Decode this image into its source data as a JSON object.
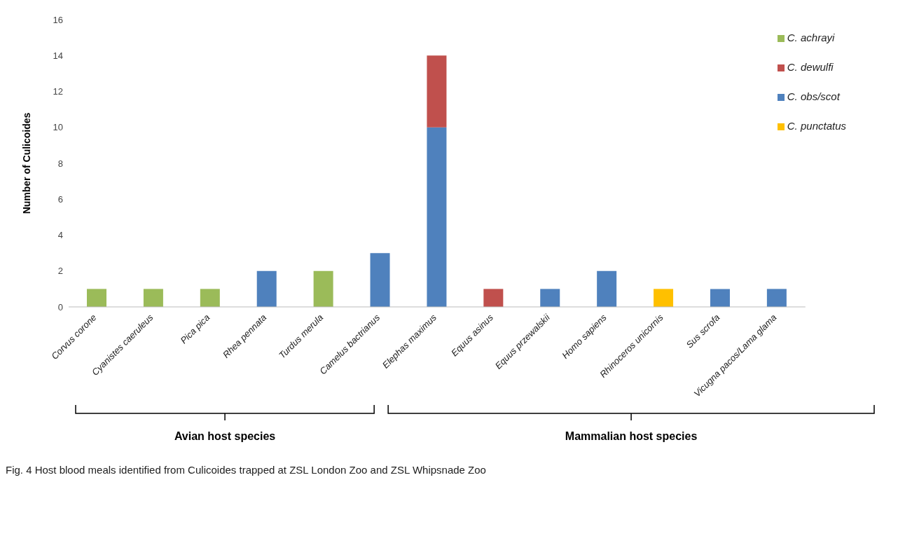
{
  "chart_data": {
    "type": "bar",
    "stacked": true,
    "ylabel": "Number of Culicoides",
    "categories": [
      "Corvus corone",
      "Cyanistes caeruleus",
      "Pica pica",
      "Rhea pennata",
      "Turdus merula",
      "Camelus bactrianus",
      "Elephas maximus",
      "Equus asinus",
      "Equus przewalskii",
      "Homo sapiens",
      "Rhinoceros unicornis",
      "Sus scrofa",
      "Vicugna pacos/Lama glama"
    ],
    "series": [
      {
        "name": "C. obs/scot",
        "color": "#4f81bd",
        "values": [
          null,
          null,
          null,
          2,
          null,
          3,
          10,
          null,
          1,
          2,
          null,
          1,
          1
        ]
      },
      {
        "name": "C. dewulfi",
        "color": "#c0504d",
        "values": [
          null,
          null,
          null,
          null,
          null,
          null,
          4,
          1,
          null,
          null,
          null,
          null,
          null
        ]
      },
      {
        "name": "C. achrayi",
        "color": "#9bbb59",
        "values": [
          1,
          1,
          1,
          null,
          2,
          null,
          null,
          null,
          null,
          null,
          null,
          null,
          null
        ]
      },
      {
        "name": "C. punctatus",
        "color": "#ffc000",
        "values": [
          null,
          null,
          null,
          null,
          null,
          null,
          null,
          null,
          null,
          null,
          1,
          null,
          null
        ]
      }
    ],
    "ylim": [
      0,
      16
    ],
    "yticks": [
      0,
      2,
      4,
      6,
      8,
      10,
      12,
      14,
      16
    ],
    "grid": false,
    "legend": "top right",
    "annotations": [
      "Avian host species",
      "Mammalian host species",
      "Fig. 4  Host blood meals identified from Culicoides trapped at ZSL London Zoo and ZSL Whipsnade Zoo"
    ]
  }
}
